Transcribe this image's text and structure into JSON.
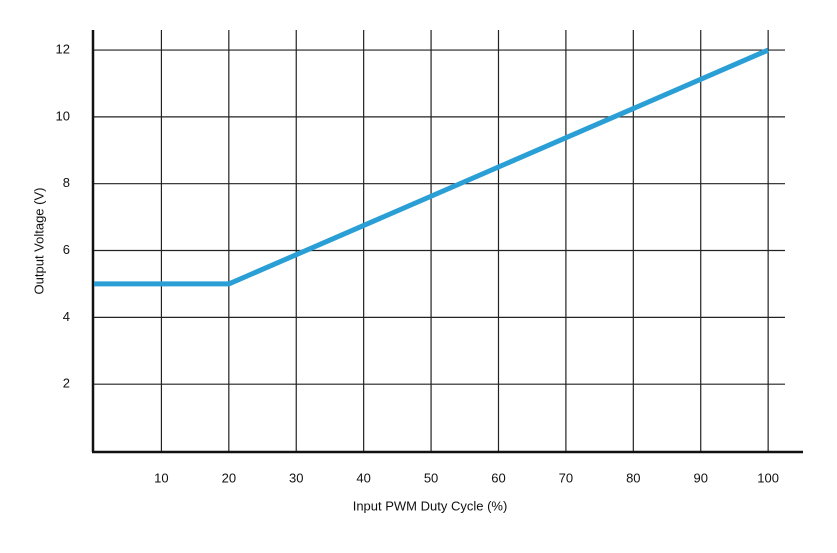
{
  "chart_data": {
    "type": "line",
    "x_label": "Input PWM Duty Cycle (%)",
    "y_label": "Output Voltage (V)",
    "x": [
      0,
      20,
      100
    ],
    "series": [
      {
        "color": "#2a9fd6",
        "values": [
          5,
          5,
          12
        ]
      }
    ],
    "xlim": [
      0,
      102.5
    ],
    "ylim": [
      0,
      12.6
    ],
    "xticks": [
      10,
      20,
      30,
      40,
      50,
      60,
      70,
      80,
      90,
      100
    ],
    "yticks": [
      2,
      4,
      6,
      8,
      10,
      12
    ],
    "grid": true
  }
}
